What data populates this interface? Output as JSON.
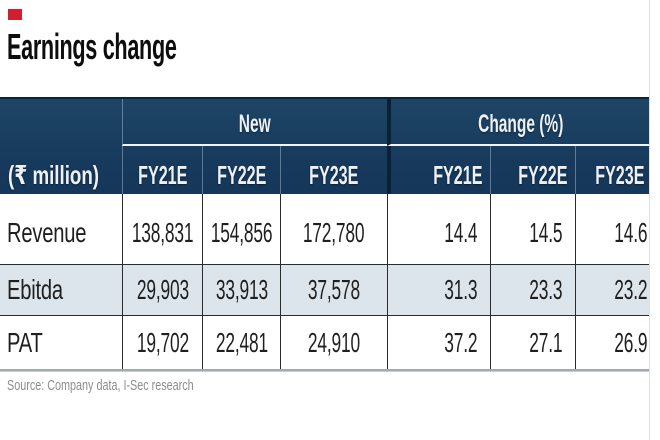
{
  "title": "Earnings change",
  "source_note": "Source: Company data, I-Sec research",
  "colors": {
    "header_navy": "#16395c",
    "alt_row_blue": "#dce5ec",
    "red_marker": "#cf2030",
    "bottom_rule_gray": "#a2aab1"
  },
  "table": {
    "unit_label": "(₹ million)",
    "group_new": "New",
    "group_change": "Change (%)",
    "cols_new": [
      "FY21E",
      "FY22E",
      "FY23E"
    ],
    "cols_change": [
      "FY21E",
      "FY22E",
      "FY23E"
    ],
    "rows": [
      {
        "label": "Revenue",
        "new": [
          "138,831",
          "154,856",
          "172,780"
        ],
        "chg": [
          "14.4",
          "14.5",
          "14.6"
        ]
      },
      {
        "label": "Ebitda",
        "new": [
          "29,903",
          "33,913",
          "37,578"
        ],
        "chg": [
          "31.3",
          "23.3",
          "23.2"
        ]
      },
      {
        "label": "PAT",
        "new": [
          "19,702",
          "22,481",
          "24,910"
        ],
        "chg": [
          "37.2",
          "27.1",
          "26.9"
        ]
      }
    ]
  },
  "chart_data": {
    "type": "table",
    "title": "Earnings change",
    "unit_label": "(₹ million)",
    "column_groups": [
      {
        "label": "New",
        "columns": [
          "FY21E",
          "FY22E",
          "FY23E"
        ]
      },
      {
        "label": "Change (%)",
        "columns": [
          "FY21E",
          "FY22E",
          "FY23E"
        ]
      }
    ],
    "rows": [
      {
        "label": "Revenue",
        "new_values": [
          138831,
          154856,
          172780
        ],
        "change_pct": [
          14.4,
          14.5,
          14.6
        ]
      },
      {
        "label": "Ebitda",
        "new_values": [
          29903,
          33913,
          37578
        ],
        "change_pct": [
          31.3,
          23.3,
          23.2
        ]
      },
      {
        "label": "PAT",
        "new_values": [
          19702,
          22481,
          24910
        ],
        "change_pct": [
          37.2,
          27.1,
          26.9
        ]
      }
    ],
    "source": "Source: Company data, I-Sec research",
    "layout": {
      "header_background": "#16395c",
      "alt_row": "Ebitda",
      "grid": "vertical-lines"
    }
  }
}
